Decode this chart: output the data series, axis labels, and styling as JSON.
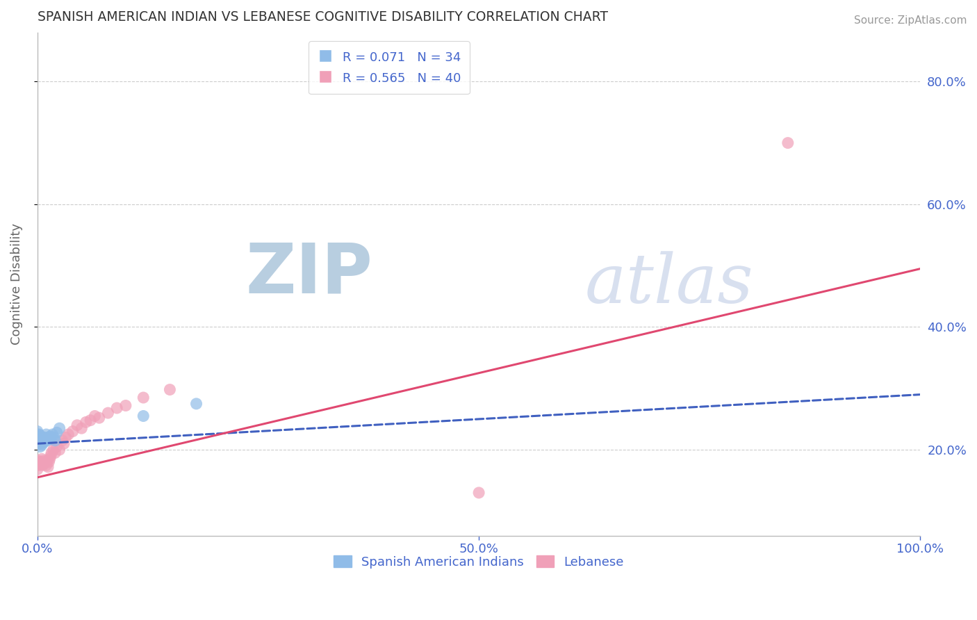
{
  "title": "SPANISH AMERICAN INDIAN VS LEBANESE COGNITIVE DISABILITY CORRELATION CHART",
  "source_text": "Source: ZipAtlas.com",
  "ylabel": "Cognitive Disability",
  "watermark_zip": "ZIP",
  "watermark_atlas": "atlas",
  "r_blue": 0.071,
  "n_blue": 34,
  "r_pink": 0.565,
  "n_pink": 40,
  "blue_color": "#90bce8",
  "pink_color": "#f0a0b8",
  "blue_line_color": "#4060c0",
  "pink_line_color": "#e04870",
  "title_color": "#333333",
  "axis_label_color": "#4466cc",
  "grid_color": "#cccccc",
  "watermark_zip_color": "#8aaecc",
  "watermark_atlas_color": "#aabbdd",
  "xlim": [
    0.0,
    1.0
  ],
  "ylim": [
    0.06,
    0.88
  ],
  "yticks": [
    0.2,
    0.4,
    0.6,
    0.8
  ],
  "ytick_labels": [
    "20.0%",
    "40.0%",
    "60.0%",
    "80.0%"
  ],
  "xticks": [
    0.0,
    0.5,
    1.0
  ],
  "xtick_labels": [
    "0.0%",
    "50.0%",
    "100.0%"
  ],
  "blue_x": [
    0.0,
    0.0,
    0.0,
    0.0,
    0.001,
    0.001,
    0.002,
    0.002,
    0.002,
    0.003,
    0.003,
    0.004,
    0.004,
    0.005,
    0.005,
    0.006,
    0.007,
    0.008,
    0.009,
    0.01,
    0.01,
    0.011,
    0.012,
    0.013,
    0.014,
    0.015,
    0.016,
    0.017,
    0.019,
    0.02,
    0.022,
    0.025,
    0.12,
    0.18
  ],
  "blue_y": [
    0.215,
    0.22,
    0.225,
    0.23,
    0.21,
    0.218,
    0.213,
    0.22,
    0.225,
    0.205,
    0.218,
    0.21,
    0.222,
    0.208,
    0.215,
    0.218,
    0.212,
    0.215,
    0.22,
    0.218,
    0.225,
    0.215,
    0.218,
    0.22,
    0.218,
    0.222,
    0.22,
    0.225,
    0.22,
    0.215,
    0.228,
    0.235,
    0.255,
    0.275
  ],
  "pink_x": [
    0.0,
    0.0,
    0.001,
    0.002,
    0.003,
    0.004,
    0.005,
    0.006,
    0.007,
    0.008,
    0.009,
    0.01,
    0.011,
    0.012,
    0.013,
    0.014,
    0.015,
    0.016,
    0.018,
    0.02,
    0.022,
    0.025,
    0.028,
    0.03,
    0.032,
    0.035,
    0.04,
    0.045,
    0.05,
    0.055,
    0.06,
    0.065,
    0.07,
    0.08,
    0.09,
    0.1,
    0.12,
    0.15,
    0.5,
    0.85
  ],
  "pink_y": [
    0.175,
    0.168,
    0.182,
    0.175,
    0.178,
    0.18,
    0.185,
    0.175,
    0.182,
    0.178,
    0.18,
    0.175,
    0.182,
    0.172,
    0.18,
    0.185,
    0.19,
    0.195,
    0.2,
    0.195,
    0.205,
    0.2,
    0.215,
    0.21,
    0.22,
    0.225,
    0.23,
    0.24,
    0.235,
    0.245,
    0.248,
    0.255,
    0.252,
    0.26,
    0.268,
    0.272,
    0.285,
    0.298,
    0.13,
    0.7
  ],
  "blue_line_x0": 0.0,
  "blue_line_x1": 1.0,
  "blue_line_y0": 0.21,
  "blue_line_y1": 0.29,
  "pink_line_x0": 0.0,
  "pink_line_x1": 1.0,
  "pink_line_y0": 0.155,
  "pink_line_y1": 0.495,
  "legend_labels": [
    "Spanish American Indians",
    "Lebanese"
  ],
  "figsize": [
    14.06,
    8.92
  ],
  "dpi": 100
}
